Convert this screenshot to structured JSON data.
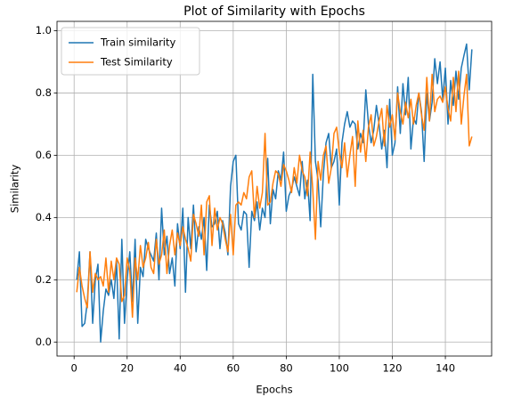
{
  "chart_data": {
    "type": "line",
    "title": "Plot of Similarity with Epochs",
    "xlabel": "Epochs",
    "ylabel": "Similarity",
    "x": [
      1,
      2,
      3,
      4,
      5,
      6,
      7,
      8,
      9,
      10,
      11,
      12,
      13,
      14,
      15,
      16,
      17,
      18,
      19,
      20,
      21,
      22,
      23,
      24,
      25,
      26,
      27,
      28,
      29,
      30,
      31,
      32,
      33,
      34,
      35,
      36,
      37,
      38,
      39,
      40,
      41,
      42,
      43,
      44,
      45,
      46,
      47,
      48,
      49,
      50,
      51,
      52,
      53,
      54,
      55,
      56,
      57,
      58,
      59,
      60,
      61,
      62,
      63,
      64,
      65,
      66,
      67,
      68,
      69,
      70,
      71,
      72,
      73,
      74,
      75,
      76,
      77,
      78,
      79,
      80,
      81,
      82,
      83,
      84,
      85,
      86,
      87,
      88,
      89,
      90,
      91,
      92,
      93,
      94,
      95,
      96,
      97,
      98,
      99,
      100,
      101,
      102,
      103,
      104,
      105,
      106,
      107,
      108,
      109,
      110,
      111,
      112,
      113,
      114,
      115,
      116,
      117,
      118,
      119,
      120,
      121,
      122,
      123,
      124,
      125,
      126,
      127,
      128,
      129,
      130,
      131,
      132,
      133,
      134,
      135,
      136,
      137,
      138,
      139,
      140,
      141,
      142,
      143,
      144,
      145,
      146,
      147,
      148,
      149,
      150
    ],
    "series": [
      {
        "name": "Train similarity",
        "color": "#1f77b4",
        "values": [
          0.2,
          0.29,
          0.05,
          0.06,
          0.13,
          0.29,
          0.06,
          0.2,
          0.25,
          0.0,
          0.1,
          0.17,
          0.15,
          0.2,
          0.14,
          0.26,
          0.01,
          0.33,
          0.06,
          0.2,
          0.29,
          0.13,
          0.33,
          0.06,
          0.24,
          0.21,
          0.33,
          0.3,
          0.28,
          0.26,
          0.35,
          0.2,
          0.43,
          0.28,
          0.34,
          0.22,
          0.27,
          0.18,
          0.38,
          0.3,
          0.43,
          0.16,
          0.4,
          0.3,
          0.44,
          0.29,
          0.37,
          0.33,
          0.4,
          0.23,
          0.44,
          0.37,
          0.38,
          0.42,
          0.3,
          0.39,
          0.35,
          0.28,
          0.5,
          0.58,
          0.6,
          0.38,
          0.36,
          0.42,
          0.41,
          0.24,
          0.42,
          0.39,
          0.45,
          0.36,
          0.43,
          0.4,
          0.59,
          0.38,
          0.49,
          0.46,
          0.55,
          0.52,
          0.61,
          0.42,
          0.47,
          0.49,
          0.53,
          0.5,
          0.47,
          0.58,
          0.46,
          0.52,
          0.39,
          0.86,
          0.58,
          0.52,
          0.37,
          0.54,
          0.64,
          0.67,
          0.56,
          0.58,
          0.62,
          0.44,
          0.64,
          0.7,
          0.74,
          0.69,
          0.71,
          0.7,
          0.62,
          0.67,
          0.64,
          0.81,
          0.7,
          0.64,
          0.68,
          0.76,
          0.7,
          0.62,
          0.68,
          0.56,
          0.78,
          0.6,
          0.64,
          0.82,
          0.67,
          0.83,
          0.73,
          0.85,
          0.62,
          0.72,
          0.7,
          0.8,
          0.74,
          0.58,
          0.8,
          0.71,
          0.77,
          0.91,
          0.83,
          0.9,
          0.78,
          0.88,
          0.7,
          0.84,
          0.76,
          0.87,
          0.78,
          0.88,
          0.92,
          0.957,
          0.81,
          0.94
        ]
      },
      {
        "name": "Test Similarity",
        "color": "#ff7f0e",
        "values": [
          0.16,
          0.24,
          0.18,
          0.14,
          0.11,
          0.29,
          0.16,
          0.22,
          0.2,
          0.21,
          0.18,
          0.27,
          0.16,
          0.26,
          0.2,
          0.27,
          0.25,
          0.13,
          0.15,
          0.27,
          0.23,
          0.08,
          0.27,
          0.2,
          0.31,
          0.24,
          0.27,
          0.32,
          0.24,
          0.22,
          0.33,
          0.25,
          0.28,
          0.36,
          0.22,
          0.31,
          0.36,
          0.28,
          0.35,
          0.31,
          0.37,
          0.33,
          0.3,
          0.26,
          0.41,
          0.38,
          0.34,
          0.44,
          0.28,
          0.45,
          0.47,
          0.31,
          0.43,
          0.36,
          0.4,
          0.38,
          0.33,
          0.29,
          0.41,
          0.28,
          0.44,
          0.45,
          0.44,
          0.48,
          0.46,
          0.53,
          0.55,
          0.4,
          0.5,
          0.43,
          0.48,
          0.67,
          0.44,
          0.45,
          0.51,
          0.55,
          0.54,
          0.5,
          0.57,
          0.55,
          0.52,
          0.48,
          0.56,
          0.51,
          0.6,
          0.55,
          0.53,
          0.47,
          0.61,
          0.49,
          0.33,
          0.58,
          0.52,
          0.6,
          0.63,
          0.51,
          0.56,
          0.67,
          0.69,
          0.61,
          0.56,
          0.64,
          0.53,
          0.6,
          0.66,
          0.5,
          0.71,
          0.61,
          0.68,
          0.58,
          0.69,
          0.73,
          0.63,
          0.66,
          0.71,
          0.75,
          0.63,
          0.76,
          0.69,
          0.73,
          0.65,
          0.8,
          0.74,
          0.7,
          0.77,
          0.72,
          0.78,
          0.7,
          0.76,
          0.8,
          0.73,
          0.68,
          0.85,
          0.71,
          0.86,
          0.74,
          0.78,
          0.79,
          0.77,
          0.82,
          0.75,
          0.71,
          0.85,
          0.74,
          0.87,
          0.7,
          0.79,
          0.86,
          0.63,
          0.66
        ]
      }
    ],
    "xlim": [
      -6.45,
      157.45
    ],
    "xticks": [
      0,
      20,
      40,
      60,
      80,
      100,
      120,
      140
    ],
    "ylim": [
      -0.045,
      1.03
    ],
    "yticks": [
      {
        "value": 0,
        "label": "0.0"
      },
      0.2,
      0.4,
      0.6,
      0.8,
      {
        "value": 1,
        "label": "1.0"
      }
    ],
    "grid": true,
    "legend": "upper left"
  }
}
